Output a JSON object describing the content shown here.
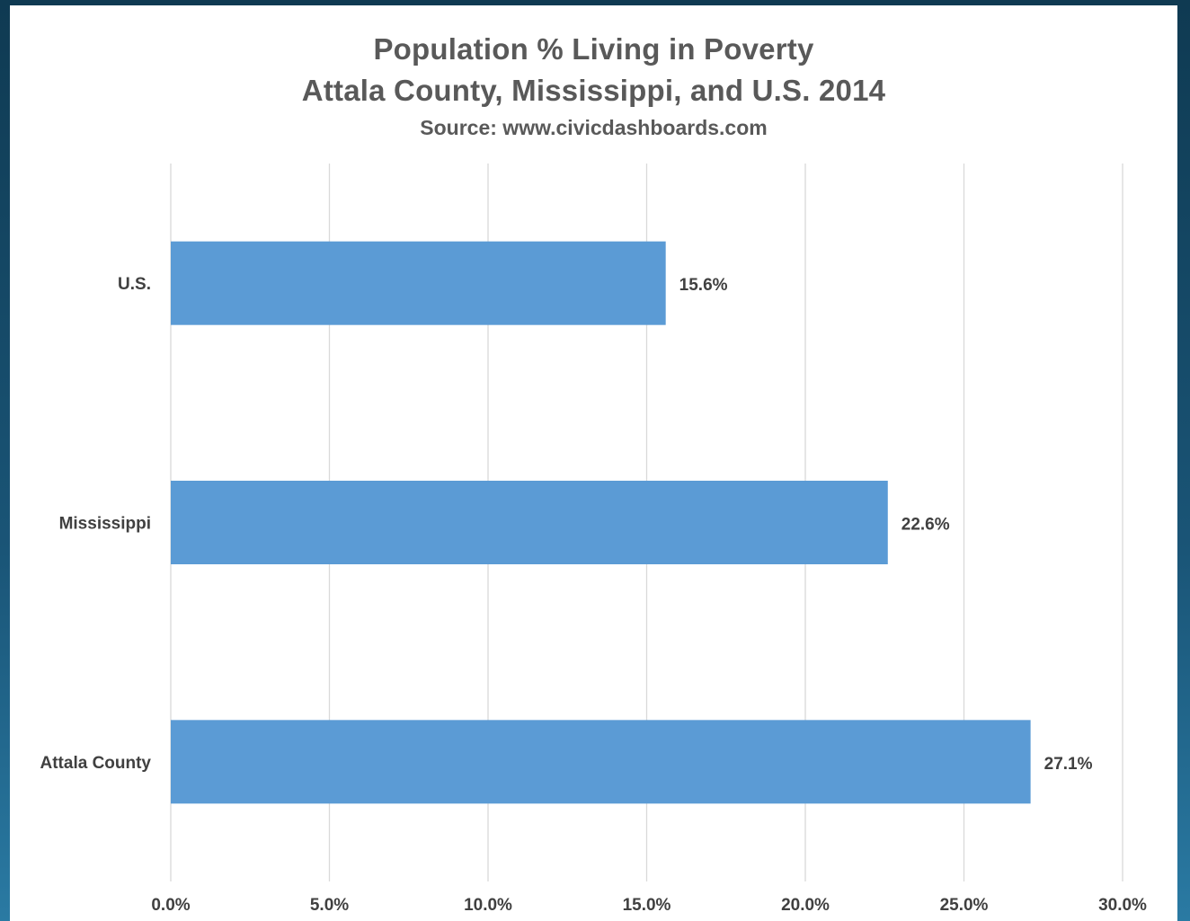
{
  "chart_data": {
    "type": "bar",
    "orientation": "horizontal",
    "title": "Population % Living in Poverty",
    "subtitle": "Attala County, Mississippi, and U.S. 2014",
    "source": "Source: www.civicdashboards.com",
    "categories": [
      "U.S.",
      "Mississippi",
      "Attala County"
    ],
    "values": [
      15.6,
      22.6,
      27.1
    ],
    "data_labels": [
      "15.6%",
      "22.6%",
      "27.1%"
    ],
    "xlim": [
      0,
      30
    ],
    "x_ticks": [
      0,
      5,
      10,
      15,
      20,
      25,
      30
    ],
    "x_tick_labels": [
      "0.0%",
      "5.0%",
      "10.0%",
      "15.0%",
      "20.0%",
      "25.0%",
      "30.0%"
    ],
    "grid": true,
    "legend": "none",
    "bar_color": "#5b9bd5",
    "grid_color": "#d9d9d9",
    "text_color": "#404040"
  }
}
